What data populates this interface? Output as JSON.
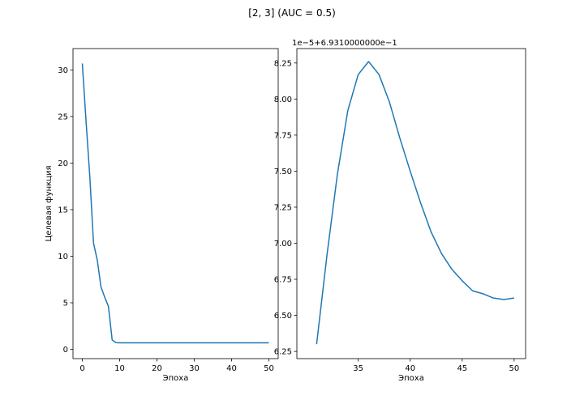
{
  "figure": {
    "suptitle": "[2, 3] (AUC = 0.5)"
  },
  "colors": {
    "line": "#1f77b4",
    "axes": "#000000",
    "background": "#ffffff"
  },
  "chart_data": [
    {
      "type": "line",
      "xlabel": "Эпоха",
      "ylabel": "Целевая функция",
      "xlim": [
        -2.5,
        52.5
      ],
      "ylim": [
        -1.0,
        32.3
      ],
      "xticks": [
        0,
        10,
        20,
        30,
        40,
        50
      ],
      "yticks": [
        0,
        5,
        10,
        15,
        20,
        25,
        30
      ],
      "ytick_labels": [
        "0",
        "5",
        "10",
        "15",
        "20",
        "25",
        "30"
      ],
      "grid": false,
      "series": [
        {
          "x": [
            0,
            1,
            2,
            3,
            4,
            5,
            6,
            7,
            8,
            9,
            10,
            11,
            12,
            13,
            14,
            15,
            16,
            17,
            18,
            19,
            20,
            21,
            22,
            23,
            24,
            25,
            26,
            27,
            28,
            29,
            30,
            31,
            32,
            33,
            34,
            35,
            36,
            37,
            38,
            39,
            40,
            41,
            42,
            43,
            44,
            45,
            46,
            47,
            48,
            49,
            50
          ],
          "values": [
            30.7,
            24.5,
            18.6,
            11.4,
            9.6,
            6.7,
            5.6,
            4.6,
            1.0,
            0.72,
            0.7,
            0.7,
            0.7,
            0.7,
            0.7,
            0.7,
            0.7,
            0.7,
            0.7,
            0.7,
            0.7,
            0.7,
            0.7,
            0.7,
            0.7,
            0.7,
            0.7,
            0.7,
            0.7,
            0.7,
            0.7,
            0.7,
            0.7,
            0.7,
            0.7,
            0.7,
            0.7,
            0.7,
            0.7,
            0.7,
            0.7,
            0.7,
            0.7,
            0.7,
            0.7,
            0.7,
            0.7,
            0.7,
            0.7,
            0.7,
            0.7
          ]
        }
      ]
    },
    {
      "type": "line",
      "xlabel": "Эпоха",
      "ylabel": "",
      "offset_label": "1e−5+6.9310000000e−1",
      "xlim": [
        29.1,
        51.1
      ],
      "ylim": [
        6.2,
        8.35
      ],
      "xticks": [
        35,
        40,
        45,
        50
      ],
      "yticks": [
        6.25,
        6.5,
        6.75,
        7.0,
        7.25,
        7.5,
        7.75,
        8.0,
        8.25
      ],
      "ytick_labels": [
        "6.25",
        "6.50",
        "6.75",
        "7.00",
        "7.25",
        "7.50",
        "7.75",
        "8.00",
        "8.25"
      ],
      "grid": false,
      "series": [
        {
          "x": [
            31,
            32,
            33,
            34,
            35,
            36,
            37,
            38,
            39,
            40,
            41,
            42,
            43,
            44,
            45,
            46,
            47,
            48,
            49,
            50
          ],
          "values": [
            6.3,
            6.92,
            7.48,
            7.92,
            8.17,
            8.26,
            8.17,
            7.98,
            7.73,
            7.5,
            7.28,
            7.08,
            6.93,
            6.82,
            6.74,
            6.67,
            6.65,
            6.62,
            6.61,
            6.62
          ]
        }
      ]
    }
  ]
}
